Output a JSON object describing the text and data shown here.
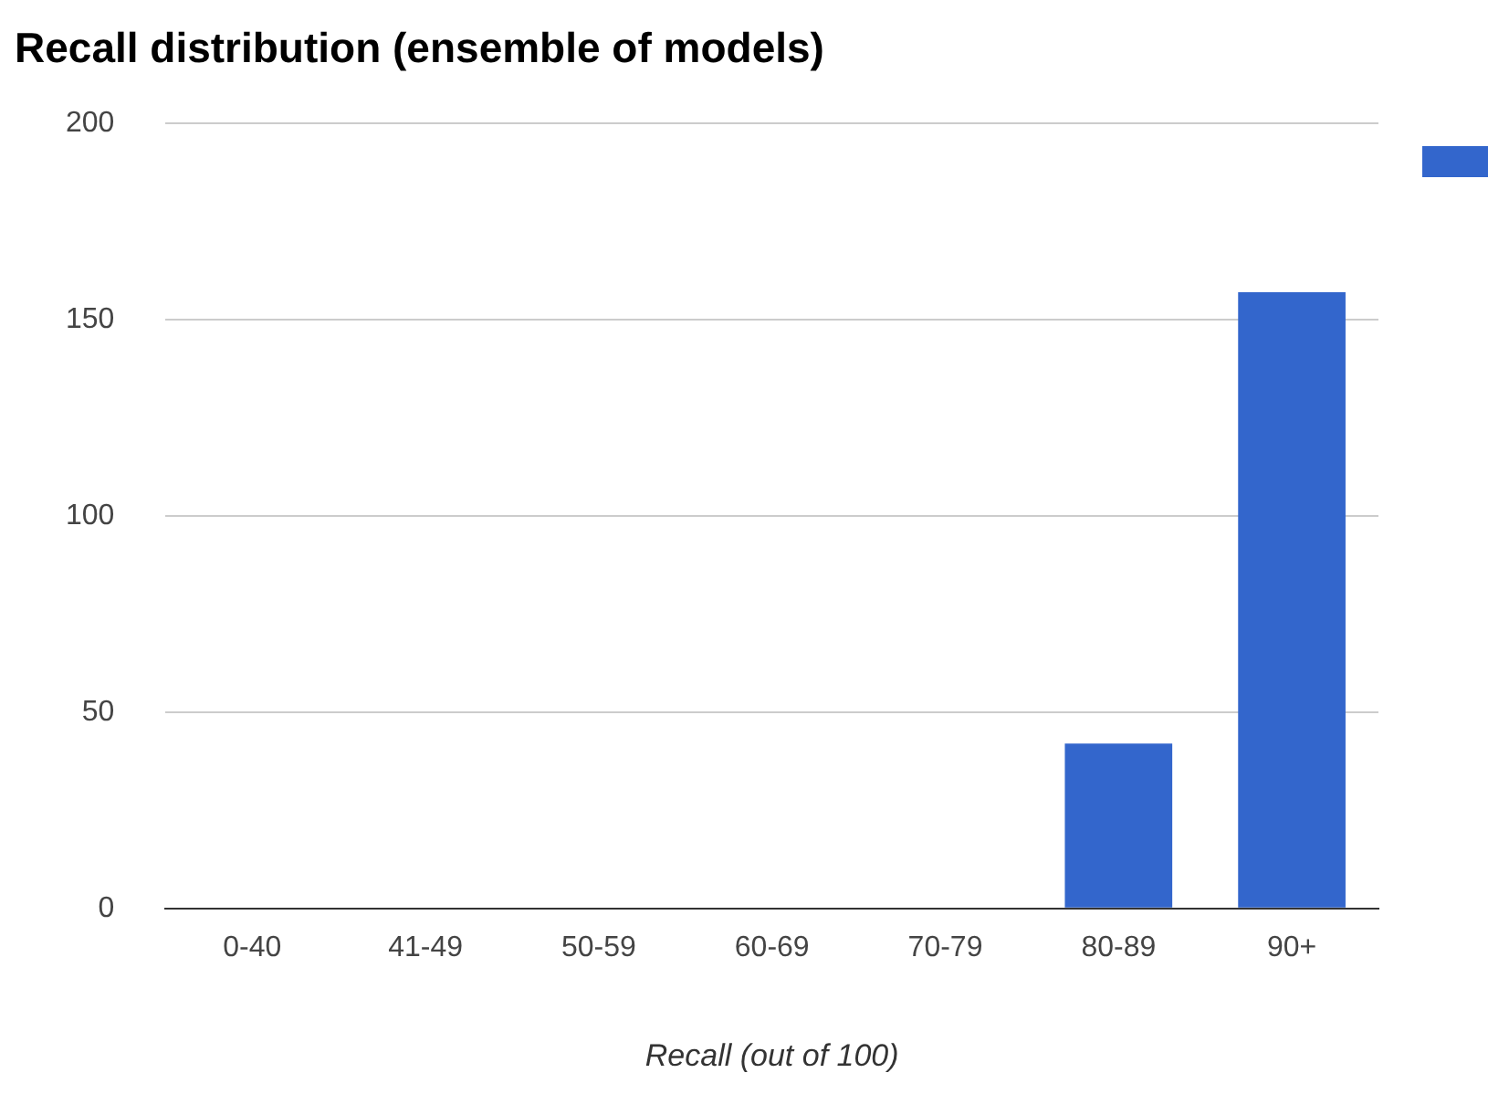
{
  "chart_data": {
    "type": "bar",
    "title": "Recall distribution (ensemble of models)",
    "xlabel": "Recall (out of 100)",
    "categories": [
      "0-40",
      "41-49",
      "50-59",
      "60-69",
      "70-79",
      "80-89",
      "90+"
    ],
    "series": [
      {
        "color": "#3366cc",
        "values": [
          0,
          0,
          0,
          0,
          0,
          42,
          157
        ]
      }
    ],
    "ylim": [
      0,
      200
    ],
    "yticks": [
      0,
      50,
      100,
      150,
      200
    ],
    "grid": "y"
  }
}
